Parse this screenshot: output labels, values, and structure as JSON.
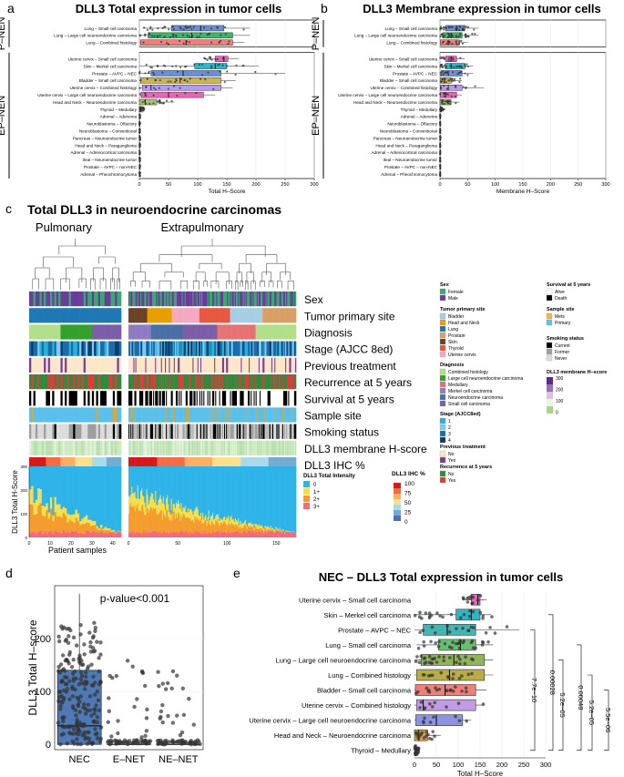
{
  "panels": {
    "a": {
      "letter": "a",
      "title": "DLL3 Total expression in tumor cells"
    },
    "b": {
      "letter": "b",
      "title": "DLL3 Membrane expression in tumor cells"
    },
    "c": {
      "letter": "c",
      "title": "Total DLL3 in neuroendocrine carcinomas",
      "group_left": "Pulmonary",
      "group_right": "Extrapulmonary",
      "tracks": [
        "Sex",
        "Tumor primary site",
        "Diagnosis",
        "Stage (AJCC 8ed)",
        "Previous treatment",
        "Recurrence at 5 years",
        "Survival at 5 years",
        "Sample site",
        "Smoking status",
        "DLL3 membrane H-score",
        "DLL3 IHC %"
      ],
      "ylabel": "DLL3 Total H-Score",
      "xlabel": "Patient samples"
    },
    "d": {
      "letter": "d"
    },
    "e": {
      "letter": "e",
      "title": "NEC – DLL3 Total expression in tumor cells"
    }
  },
  "legends": {
    "sex": {
      "title": "Sex",
      "items": [
        "Female",
        "Male"
      ],
      "colors": [
        "#3aa870",
        "#6a3d9a"
      ]
    },
    "site": {
      "title": "Tumor primary site",
      "items": [
        "Bladder",
        "Head and Neck",
        "Lung",
        "Prostate",
        "Skin",
        "Thyroid",
        "Uterine cervix"
      ],
      "colors": [
        "#a6cee3",
        "#e69f00",
        "#1f78b4",
        "#d9a066",
        "#6b4226",
        "#e8583f",
        "#f4a9c0"
      ]
    },
    "diag": {
      "title": "Diagnosis",
      "items": [
        "Combined histology",
        "Large cell neuroendocrine carcinoma",
        "Medullary",
        "Merkel cell carcinoma",
        "Neuroendocrine carcinoma",
        "Small cell carcinoma"
      ],
      "colors": [
        "#b2df8a",
        "#33a02c",
        "#e57373",
        "#8e7cc3",
        "#4a6fa5",
        "#7b5ea7"
      ]
    },
    "stage": {
      "title": "Stage (AJCC8ed)",
      "items": [
        "1",
        "2",
        "3",
        "4"
      ],
      "colors": [
        "#2bb0d8",
        "#7fc8f8",
        "#1b6ca8",
        "#0b3d6b"
      ]
    },
    "prev": {
      "title": "Previous treatment",
      "items": [
        "No",
        "Yes"
      ],
      "colors": [
        "#fde7c8",
        "#7b3f99"
      ]
    },
    "recur": {
      "title": "Recurrence at 5 years",
      "items": [
        "No",
        "Yes"
      ],
      "colors": [
        "#2e8b3e",
        "#e23a3a"
      ]
    },
    "surv": {
      "title": "Survival at 5 years",
      "items": [
        "Alive",
        "Death"
      ],
      "colors": [
        "#ffffff",
        "#000000"
      ]
    },
    "sample": {
      "title": "Sample site",
      "items": [
        "Mets",
        "Primary"
      ],
      "colors": [
        "#f6b44b",
        "#5bc0eb"
      ]
    },
    "smoke": {
      "title": "Smoking status",
      "items": [
        "Current",
        "Former",
        "Never"
      ],
      "colors": [
        "#000000",
        "#9e9e9e",
        "#dcdcdc"
      ]
    },
    "mem": {
      "title": "DLL3 membrane H–score",
      "ticks": [
        "300",
        "200",
        "100",
        "0"
      ]
    },
    "ihc": {
      "title": "DLL3 IHC %",
      "ticks": [
        "100",
        "75",
        "50",
        "25",
        "0"
      ]
    },
    "intensity": {
      "title": "DLL3 Total Intensity",
      "items": [
        "0",
        "1+",
        "2+",
        "3+"
      ],
      "colors": [
        "#2fb4e9",
        "#f5e04b",
        "#f59c2e",
        "#f26b7a"
      ]
    }
  },
  "chart_data": [
    {
      "id": "a",
      "type": "boxplot",
      "title": "DLL3 Total expression in tumor cells",
      "xlabel": "Total H–Score",
      "xlim": [
        0,
        300
      ],
      "xticks": [
        "0",
        "50",
        "100",
        "150",
        "200",
        "250",
        "300"
      ],
      "facets": [
        "P–NEN",
        "EP–NEN"
      ],
      "groups": [
        {
          "facet": "P–NEN",
          "name": "Lung – Small cell carcinoma",
          "q1": 55,
          "med": 105,
          "q3": 145,
          "lo": 5,
          "hi": 190,
          "color": "#6b8fd0",
          "n": 28
        },
        {
          "facet": "P–NEN",
          "name": "Lung – Large cell neuroendocrine carcinoma",
          "q1": 15,
          "med": 90,
          "q3": 160,
          "lo": 0,
          "hi": 190,
          "color": "#3fb56b",
          "n": 30
        },
        {
          "facet": "P–NEN",
          "name": "Lung – Combined histology",
          "q1": 2,
          "med": 80,
          "q3": 160,
          "lo": 0,
          "hi": 180,
          "color": "#ee7f7a",
          "n": 14
        },
        {
          "facet": "EP–NEN",
          "name": "Uterine cervix – Small cell carcinoma",
          "q1": 130,
          "med": 145,
          "q3": 152,
          "lo": 110,
          "hi": 170,
          "color": "#e766b8",
          "n": 12
        },
        {
          "facet": "EP–NEN",
          "name": "Skin – Merkel cell carcinoma",
          "q1": 95,
          "med": 130,
          "q3": 150,
          "lo": 0,
          "hi": 205,
          "color": "#2eb8c6",
          "n": 24
        },
        {
          "facet": "EP–NEN",
          "name": "Prostate – AVPC – NEC",
          "q1": 20,
          "med": 75,
          "q3": 140,
          "lo": 0,
          "hi": 250,
          "color": "#6b8fd0",
          "n": 16
        },
        {
          "facet": "EP–NEN",
          "name": "Bladder – Small cell carcinoma",
          "q1": 2,
          "med": 70,
          "q3": 140,
          "lo": 0,
          "hi": 165,
          "color": "#c9b458",
          "n": 18
        },
        {
          "facet": "EP–NEN",
          "name": "Uterine cervix – Combined histology",
          "q1": 5,
          "med": 20,
          "q3": 140,
          "lo": 0,
          "hi": 160,
          "color": "#b89be6",
          "n": 10
        },
        {
          "facet": "EP–NEN",
          "name": "Uterine cervix – Large cell neuroendocrine carcinoma",
          "q1": 3,
          "med": 50,
          "q3": 110,
          "lo": 0,
          "hi": 130,
          "color": "#e766b8",
          "n": 8
        },
        {
          "facet": "EP–NEN",
          "name": "Head and Neck – Neuroendocrine carcinoma",
          "q1": 0,
          "med": 10,
          "q3": 30,
          "lo": 0,
          "hi": 60,
          "color": "#a3c46a",
          "n": 16
        },
        {
          "facet": "EP–NEN",
          "name": "Thyroid – Medullary",
          "q1": 0,
          "med": 2,
          "q3": 5,
          "lo": 0,
          "hi": 10,
          "color": "#d8a04a",
          "n": 20
        },
        {
          "facet": "EP–NEN",
          "name": "Adrenal – Adenoma",
          "q1": 0,
          "med": 0,
          "q3": 1,
          "lo": 0,
          "hi": 2,
          "color": "#aaaaaa",
          "n": 6
        },
        {
          "facet": "EP–NEN",
          "name": "Neuroblastoma – Olfactory",
          "q1": 0,
          "med": 0,
          "q3": 1,
          "lo": 0,
          "hi": 2,
          "color": "#aaaaaa",
          "n": 6
        },
        {
          "facet": "EP–NEN",
          "name": "Neuroblastoma – Conventional",
          "q1": 0,
          "med": 0,
          "q3": 1,
          "lo": 0,
          "hi": 2,
          "color": "#aaaaaa",
          "n": 6
        },
        {
          "facet": "EP–NEN",
          "name": "Pancreas – Neuroendocrine tumor",
          "q1": 0,
          "med": 0,
          "q3": 1,
          "lo": 0,
          "hi": 2,
          "color": "#aaaaaa",
          "n": 6
        },
        {
          "facet": "EP–NEN",
          "name": "Head and Neck – Paraganglioma",
          "q1": 0,
          "med": 0,
          "q3": 1,
          "lo": 0,
          "hi": 2,
          "color": "#aaaaaa",
          "n": 6
        },
        {
          "facet": "EP–NEN",
          "name": "Adrenal – Adrenocortical carcinoma",
          "q1": 0,
          "med": 0,
          "q3": 1,
          "lo": 0,
          "hi": 2,
          "color": "#aaaaaa",
          "n": 6
        },
        {
          "facet": "EP–NEN",
          "name": "Ileal – Neuroendocrine tumor",
          "q1": 0,
          "med": 0,
          "q3": 1,
          "lo": 0,
          "hi": 2,
          "color": "#aaaaaa",
          "n": 6
        },
        {
          "facet": "EP–NEN",
          "name": "Prostate – AVPC – non-NEC",
          "q1": 0,
          "med": 0,
          "q3": 1,
          "lo": 0,
          "hi": 2,
          "color": "#aaaaaa",
          "n": 6
        },
        {
          "facet": "EP–NEN",
          "name": "Adrenal – Pheochromocytoma",
          "q1": 0,
          "med": 0,
          "q3": 1,
          "lo": 0,
          "hi": 2,
          "color": "#aaaaaa",
          "n": 6
        }
      ]
    },
    {
      "id": "b",
      "type": "boxplot",
      "title": "DLL3 Membrane expression in tumor cells",
      "xlabel": "Membrane H–Score",
      "xlim": [
        0,
        300
      ],
      "xticks": [
        "0",
        "50",
        "100",
        "150",
        "200",
        "250",
        "300"
      ],
      "facets": [
        "P–NEN",
        "EP–NEN"
      ],
      "groups": [
        {
          "facet": "P–NEN",
          "name": "Lung – Small cell carcinoma",
          "q1": 10,
          "med": 30,
          "q3": 45,
          "lo": 0,
          "hi": 70,
          "color": "#6b8fd0",
          "n": 28
        },
        {
          "facet": "P–NEN",
          "name": "Lung – Large cell neuroendocrine carcinoma",
          "q1": 5,
          "med": 20,
          "q3": 40,
          "lo": 0,
          "hi": 70,
          "color": "#3fb56b",
          "n": 30
        },
        {
          "facet": "P–NEN",
          "name": "Lung – Combined histology",
          "q1": 1,
          "med": 15,
          "q3": 35,
          "lo": 0,
          "hi": 50,
          "color": "#ee7f7a",
          "n": 14
        },
        {
          "facet": "EP–NEN",
          "name": "Uterine cervix – Small cell carcinoma",
          "q1": 10,
          "med": 20,
          "q3": 30,
          "lo": 0,
          "hi": 45,
          "color": "#e766b8",
          "n": 12
        },
        {
          "facet": "EP–NEN",
          "name": "Skin – Merkel cell carcinoma",
          "q1": 10,
          "med": 20,
          "q3": 45,
          "lo": 0,
          "hi": 60,
          "color": "#2eb8c6",
          "n": 24
        },
        {
          "facet": "EP–NEN",
          "name": "Prostate – AVPC – NEC",
          "q1": 2,
          "med": 15,
          "q3": 40,
          "lo": 0,
          "hi": 60,
          "color": "#6b8fd0",
          "n": 16
        },
        {
          "facet": "EP–NEN",
          "name": "Bladder – Small cell carcinoma",
          "q1": 1,
          "med": 8,
          "q3": 20,
          "lo": 0,
          "hi": 40,
          "color": "#c9b458",
          "n": 18
        },
        {
          "facet": "EP–NEN",
          "name": "Uterine cervix – Combined histology",
          "q1": 1,
          "med": 15,
          "q3": 40,
          "lo": 0,
          "hi": 80,
          "color": "#b89be6",
          "n": 10
        },
        {
          "facet": "EP–NEN",
          "name": "Uterine cervix – Large cell neuroendocrine carcinoma",
          "q1": 1,
          "med": 10,
          "q3": 30,
          "lo": 0,
          "hi": 40,
          "color": "#e766b8",
          "n": 8
        },
        {
          "facet": "EP–NEN",
          "name": "Head and Neck – Neuroendocrine carcinoma",
          "q1": 0,
          "med": 5,
          "q3": 20,
          "lo": 0,
          "hi": 35,
          "color": "#a3c46a",
          "n": 16
        },
        {
          "facet": "EP–NEN",
          "name": "Thyroid – Medullary",
          "q1": 0,
          "med": 1,
          "q3": 3,
          "lo": 0,
          "hi": 8,
          "color": "#d8a04a",
          "n": 20
        },
        {
          "facet": "EP–NEN",
          "name": "Adrenal – Adenoma",
          "q1": 0,
          "med": 0,
          "q3": 1,
          "lo": 0,
          "hi": 1,
          "color": "#aaaaaa",
          "n": 6
        },
        {
          "facet": "EP–NEN",
          "name": "Neuroblastoma – Olfactory",
          "q1": 0,
          "med": 0,
          "q3": 1,
          "lo": 0,
          "hi": 1,
          "color": "#aaaaaa",
          "n": 6
        },
        {
          "facet": "EP–NEN",
          "name": "Neuroblastoma – Conventional",
          "q1": 0,
          "med": 0,
          "q3": 1,
          "lo": 0,
          "hi": 1,
          "color": "#aaaaaa",
          "n": 6
        },
        {
          "facet": "EP–NEN",
          "name": "Pancreas – Neuroendocrine tumor",
          "q1": 0,
          "med": 0,
          "q3": 1,
          "lo": 0,
          "hi": 1,
          "color": "#aaaaaa",
          "n": 6
        },
        {
          "facet": "EP–NEN",
          "name": "Head and Neck – Paraganglioma",
          "q1": 0,
          "med": 0,
          "q3": 1,
          "lo": 0,
          "hi": 1,
          "color": "#aaaaaa",
          "n": 6
        },
        {
          "facet": "EP–NEN",
          "name": "Adrenal – Adrenocortical carcinoma",
          "q1": 0,
          "med": 0,
          "q3": 1,
          "lo": 0,
          "hi": 1,
          "color": "#aaaaaa",
          "n": 6
        },
        {
          "facet": "EP–NEN",
          "name": "Ileal – Neuroendocrine tumor",
          "q1": 0,
          "med": 0,
          "q3": 1,
          "lo": 0,
          "hi": 1,
          "color": "#aaaaaa",
          "n": 6
        },
        {
          "facet": "EP–NEN",
          "name": "Prostate – AVPC – non-NEC",
          "q1": 0,
          "med": 0,
          "q3": 1,
          "lo": 0,
          "hi": 1,
          "color": "#aaaaaa",
          "n": 6
        },
        {
          "facet": "EP–NEN",
          "name": "Adrenal – Pheochromocytoma",
          "q1": 0,
          "med": 0,
          "q3": 1,
          "lo": 0,
          "hi": 1,
          "color": "#aaaaaa",
          "n": 6
        }
      ]
    },
    {
      "id": "c",
      "type": "stacked-bar",
      "xlabel": "Patient samples",
      "ylabel": "DLL3 Total H-Score",
      "yticks": [
        "0",
        "100",
        "200",
        "300"
      ],
      "ylim": [
        0,
        300
      ],
      "x_pulmonary_ticks": [
        "0",
        "10",
        "20",
        "30",
        "40"
      ],
      "x_extrapulmonary_ticks": [
        "0",
        "50",
        "100",
        "150"
      ],
      "n_pulmonary": 44,
      "n_extrapulmonary": 170
    },
    {
      "id": "d",
      "type": "box-strip",
      "ylabel": "DLL3 Total H–score",
      "annotation": "p-value<0.001",
      "categories": [
        "NEC",
        "E–NET",
        "NE–NET"
      ],
      "ylim": [
        0,
        300
      ],
      "yticks": [
        "0",
        "100",
        "200"
      ],
      "boxes": [
        {
          "q1": 0,
          "med": 35,
          "q3": 140,
          "lo": 0,
          "hi": 285,
          "n": 210
        },
        {
          "q1": 0,
          "med": 0,
          "q3": 0,
          "lo": 0,
          "hi": 0,
          "n": 70
        },
        {
          "q1": 0,
          "med": 0,
          "q3": 0,
          "lo": 0,
          "hi": 0,
          "n": 70
        }
      ]
    },
    {
      "id": "e",
      "type": "boxplot",
      "title": "NEC – DLL3 Total expression in tumor cells",
      "xlabel": "Total H–Score",
      "xlim": [
        0,
        300
      ],
      "xticks": [
        "0",
        "50",
        "100",
        "150",
        "200",
        "250",
        "300"
      ],
      "groups": [
        {
          "name": "Uterine cervix – Small cell carcinoma",
          "q1": 130,
          "med": 145,
          "q3": 150,
          "lo": 110,
          "hi": 165,
          "color": "#e766b8",
          "n": 12
        },
        {
          "name": "Skin – Merkel cell carcinoma",
          "q1": 95,
          "med": 130,
          "q3": 150,
          "lo": 0,
          "hi": 175,
          "color": "#2eb8c6",
          "n": 22
        },
        {
          "name": "Prostate – AVPC – NEC",
          "q1": 20,
          "med": 75,
          "q3": 140,
          "lo": 0,
          "hi": 240,
          "color": "#46b4b0",
          "n": 16
        },
        {
          "name": "Lung – Small cell carcinoma",
          "q1": 55,
          "med": 105,
          "q3": 140,
          "lo": 5,
          "hi": 180,
          "color": "#6bbf74",
          "n": 26
        },
        {
          "name": "Lung – Large cell neuroendocrine carcinoma",
          "q1": 15,
          "med": 90,
          "q3": 160,
          "lo": 0,
          "hi": 180,
          "color": "#8fb55a",
          "n": 28
        },
        {
          "name": "Lung – Combined histology",
          "q1": 5,
          "med": 80,
          "q3": 160,
          "lo": 0,
          "hi": 180,
          "color": "#b9ad4a",
          "n": 14
        },
        {
          "name": "Bladder – Small cell carcinoma",
          "q1": 2,
          "med": 70,
          "q3": 140,
          "lo": 0,
          "hi": 165,
          "color": "#ee7f7a",
          "n": 18
        },
        {
          "name": "Uterine cervix – Combined histology",
          "q1": 5,
          "med": 20,
          "q3": 140,
          "lo": 0,
          "hi": 160,
          "color": "#c19be3",
          "n": 10
        },
        {
          "name": "Uterine cervix – Large cell neuroendocrine carcinoma",
          "q1": 3,
          "med": 50,
          "q3": 110,
          "lo": 0,
          "hi": 130,
          "color": "#8c93e0",
          "n": 8
        },
        {
          "name": "Head and Neck – Neuroendocrine carcinoma",
          "q1": 0,
          "med": 10,
          "q3": 30,
          "lo": 0,
          "hi": 60,
          "color": "#d9a04a",
          "n": 16
        },
        {
          "name": "Thyroid – Medullary",
          "q1": 0,
          "med": 2,
          "q3": 5,
          "lo": 0,
          "hi": 10,
          "color": "#888888",
          "n": 20
        }
      ],
      "pvalues": [
        "7.7e−10",
        "0.00028",
        "5.2e−05",
        "0.00048",
        "5.2e−05",
        "5.5e−06"
      ]
    }
  ]
}
